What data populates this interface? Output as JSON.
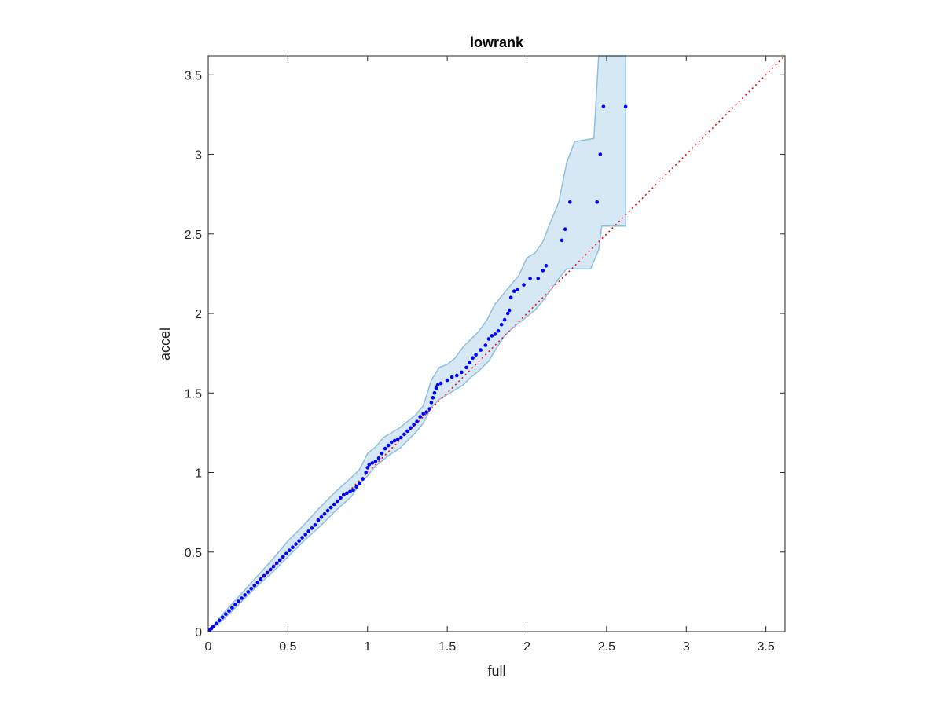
{
  "chart_data": {
    "type": "scatter",
    "title": "lowrank",
    "xlabel": "full",
    "ylabel": "accel",
    "xlim": [
      0,
      3.62
    ],
    "ylim": [
      0,
      3.62
    ],
    "xticks": [
      0,
      0.5,
      1,
      1.5,
      2,
      2.5,
      3,
      3.5
    ],
    "yticks": [
      0,
      0.5,
      1,
      1.5,
      2,
      2.5,
      3,
      3.5
    ],
    "xtick_labels": [
      "0",
      "0.5",
      "1",
      "1.5",
      "2",
      "2.5",
      "3",
      "3.5"
    ],
    "ytick_labels": [
      "0",
      "0.5",
      "1",
      "1.5",
      "2",
      "2.5",
      "3",
      "3.5"
    ],
    "grid": false,
    "reference_line": {
      "style": "dotted",
      "color": "#ff0000",
      "from": [
        0,
        0
      ],
      "to": [
        3.62,
        3.62
      ]
    },
    "points_color": "#0000ff",
    "band_fill_color": "#d6e8f4",
    "band_edge_color": "#8ebfdd",
    "points": [
      [
        0.01,
        0.01
      ],
      [
        0.02,
        0.02
      ],
      [
        0.03,
        0.03
      ],
      [
        0.05,
        0.05
      ],
      [
        0.07,
        0.07
      ],
      [
        0.09,
        0.09
      ],
      [
        0.11,
        0.11
      ],
      [
        0.13,
        0.13
      ],
      [
        0.15,
        0.15
      ],
      [
        0.17,
        0.17
      ],
      [
        0.19,
        0.19
      ],
      [
        0.21,
        0.21
      ],
      [
        0.23,
        0.23
      ],
      [
        0.25,
        0.25
      ],
      [
        0.27,
        0.27
      ],
      [
        0.29,
        0.29
      ],
      [
        0.31,
        0.31
      ],
      [
        0.33,
        0.33
      ],
      [
        0.35,
        0.35
      ],
      [
        0.37,
        0.37
      ],
      [
        0.39,
        0.39
      ],
      [
        0.41,
        0.41
      ],
      [
        0.43,
        0.43
      ],
      [
        0.45,
        0.45
      ],
      [
        0.47,
        0.47
      ],
      [
        0.49,
        0.49
      ],
      [
        0.51,
        0.51
      ],
      [
        0.53,
        0.53
      ],
      [
        0.55,
        0.55
      ],
      [
        0.57,
        0.57
      ],
      [
        0.59,
        0.59
      ],
      [
        0.61,
        0.61
      ],
      [
        0.63,
        0.63
      ],
      [
        0.65,
        0.65
      ],
      [
        0.67,
        0.67
      ],
      [
        0.69,
        0.7
      ],
      [
        0.71,
        0.72
      ],
      [
        0.73,
        0.74
      ],
      [
        0.75,
        0.76
      ],
      [
        0.77,
        0.78
      ],
      [
        0.79,
        0.8
      ],
      [
        0.81,
        0.82
      ],
      [
        0.83,
        0.84
      ],
      [
        0.85,
        0.86
      ],
      [
        0.87,
        0.87
      ],
      [
        0.89,
        0.88
      ],
      [
        0.91,
        0.89
      ],
      [
        0.93,
        0.91
      ],
      [
        0.95,
        0.93
      ],
      [
        0.97,
        0.96
      ],
      [
        0.99,
        1.0
      ],
      [
        1.0,
        1.03
      ],
      [
        1.01,
        1.05
      ],
      [
        1.03,
        1.06
      ],
      [
        1.05,
        1.07
      ],
      [
        1.07,
        1.09
      ],
      [
        1.09,
        1.12
      ],
      [
        1.11,
        1.15
      ],
      [
        1.13,
        1.17
      ],
      [
        1.15,
        1.19
      ],
      [
        1.17,
        1.2
      ],
      [
        1.19,
        1.21
      ],
      [
        1.21,
        1.22
      ],
      [
        1.23,
        1.24
      ],
      [
        1.25,
        1.26
      ],
      [
        1.27,
        1.28
      ],
      [
        1.29,
        1.3
      ],
      [
        1.31,
        1.32
      ],
      [
        1.33,
        1.35
      ],
      [
        1.35,
        1.37
      ],
      [
        1.37,
        1.38
      ],
      [
        1.39,
        1.4
      ],
      [
        1.4,
        1.44
      ],
      [
        1.41,
        1.47
      ],
      [
        1.42,
        1.5
      ],
      [
        1.43,
        1.53
      ],
      [
        1.44,
        1.55
      ],
      [
        1.46,
        1.56
      ],
      [
        1.5,
        1.58
      ],
      [
        1.53,
        1.6
      ],
      [
        1.56,
        1.61
      ],
      [
        1.59,
        1.63
      ],
      [
        1.62,
        1.66
      ],
      [
        1.64,
        1.69
      ],
      [
        1.66,
        1.72
      ],
      [
        1.68,
        1.74
      ],
      [
        1.71,
        1.77
      ],
      [
        1.74,
        1.8
      ],
      [
        1.76,
        1.84
      ],
      [
        1.78,
        1.86
      ],
      [
        1.8,
        1.87
      ],
      [
        1.82,
        1.89
      ],
      [
        1.84,
        1.93
      ],
      [
        1.86,
        1.96
      ],
      [
        1.88,
        2.0
      ],
      [
        1.89,
        2.02
      ],
      [
        1.9,
        2.1
      ],
      [
        1.92,
        2.14
      ],
      [
        1.94,
        2.15
      ],
      [
        1.98,
        2.18
      ],
      [
        2.02,
        2.22
      ],
      [
        2.07,
        2.22
      ],
      [
        2.1,
        2.27
      ],
      [
        2.12,
        2.3
      ],
      [
        2.22,
        2.46
      ],
      [
        2.24,
        2.53
      ],
      [
        2.27,
        2.7
      ],
      [
        2.44,
        2.7
      ],
      [
        2.46,
        3.0
      ],
      [
        2.48,
        3.3
      ],
      [
        2.62,
        3.3
      ]
    ],
    "band": {
      "upper": [
        [
          0,
          0
        ],
        [
          0.05,
          0.06
        ],
        [
          0.1,
          0.12
        ],
        [
          0.2,
          0.23
        ],
        [
          0.3,
          0.34
        ],
        [
          0.4,
          0.45
        ],
        [
          0.5,
          0.57
        ],
        [
          0.6,
          0.67
        ],
        [
          0.7,
          0.78
        ],
        [
          0.8,
          0.88
        ],
        [
          0.9,
          0.97
        ],
        [
          0.95,
          1.02
        ],
        [
          1.0,
          1.12
        ],
        [
          1.05,
          1.16
        ],
        [
          1.1,
          1.22
        ],
        [
          1.15,
          1.25
        ],
        [
          1.2,
          1.28
        ],
        [
          1.25,
          1.32
        ],
        [
          1.3,
          1.36
        ],
        [
          1.35,
          1.42
        ],
        [
          1.4,
          1.58
        ],
        [
          1.45,
          1.66
        ],
        [
          1.5,
          1.68
        ],
        [
          1.55,
          1.72
        ],
        [
          1.6,
          1.79
        ],
        [
          1.65,
          1.84
        ],
        [
          1.7,
          1.89
        ],
        [
          1.75,
          1.96
        ],
        [
          1.8,
          2.06
        ],
        [
          1.85,
          2.12
        ],
        [
          1.9,
          2.18
        ],
        [
          1.95,
          2.24
        ],
        [
          2.0,
          2.35
        ],
        [
          2.05,
          2.38
        ],
        [
          2.1,
          2.45
        ],
        [
          2.15,
          2.58
        ],
        [
          2.2,
          2.7
        ],
        [
          2.25,
          2.95
        ],
        [
          2.3,
          3.08
        ],
        [
          2.42,
          3.1
        ],
        [
          2.45,
          3.62
        ],
        [
          2.62,
          3.62
        ]
      ],
      "lower": [
        [
          2.62,
          2.55
        ],
        [
          2.47,
          2.55
        ],
        [
          2.45,
          2.4
        ],
        [
          2.4,
          2.28
        ],
        [
          2.25,
          2.28
        ],
        [
          2.2,
          2.22
        ],
        [
          2.15,
          2.15
        ],
        [
          2.1,
          2.08
        ],
        [
          2.05,
          2.02
        ],
        [
          2.0,
          1.98
        ],
        [
          1.95,
          1.94
        ],
        [
          1.9,
          1.9
        ],
        [
          1.86,
          1.86
        ],
        [
          1.82,
          1.8
        ],
        [
          1.76,
          1.7
        ],
        [
          1.7,
          1.64
        ],
        [
          1.65,
          1.6
        ],
        [
          1.6,
          1.55
        ],
        [
          1.55,
          1.52
        ],
        [
          1.5,
          1.49
        ],
        [
          1.45,
          1.46
        ],
        [
          1.4,
          1.41
        ],
        [
          1.35,
          1.31
        ],
        [
          1.3,
          1.25
        ],
        [
          1.25,
          1.2
        ],
        [
          1.2,
          1.15
        ],
        [
          1.15,
          1.12
        ],
        [
          1.1,
          1.08
        ],
        [
          1.05,
          1.04
        ],
        [
          1.0,
          0.98
        ],
        [
          0.95,
          0.93
        ],
        [
          0.9,
          0.85
        ],
        [
          0.8,
          0.76
        ],
        [
          0.7,
          0.66
        ],
        [
          0.6,
          0.57
        ],
        [
          0.5,
          0.47
        ],
        [
          0.4,
          0.37
        ],
        [
          0.3,
          0.28
        ],
        [
          0.2,
          0.18
        ],
        [
          0.1,
          0.08
        ],
        [
          0.05,
          0.04
        ],
        [
          0,
          0
        ]
      ]
    }
  }
}
